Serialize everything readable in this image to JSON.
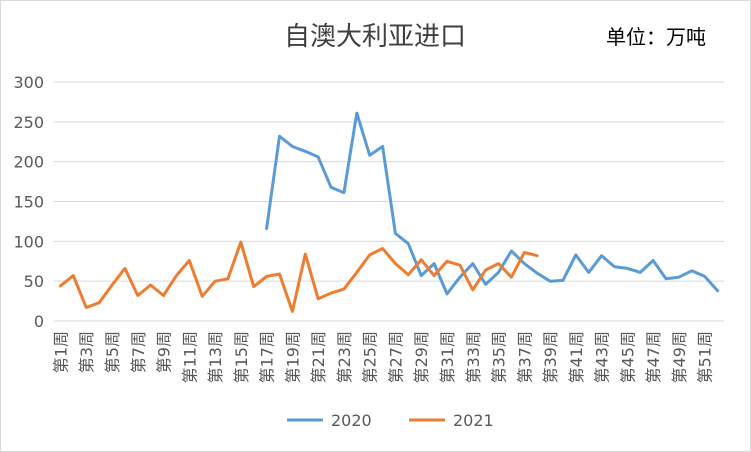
{
  "chart_data": {
    "type": "line",
    "title": "自澳大利亚进口",
    "unit_label": "单位：万吨",
    "ylim": [
      0,
      300
    ],
    "yticks": [
      0,
      50,
      100,
      150,
      200,
      250,
      300
    ],
    "grid": true,
    "legend_position": "bottom",
    "x": [
      "第1周",
      "第2周",
      "第3周",
      "第4周",
      "第5周",
      "第6周",
      "第7周",
      "第8周",
      "第9周",
      "第10周",
      "第11周",
      "第12周",
      "第13周",
      "第14周",
      "第15周",
      "第16周",
      "第17周",
      "第18周",
      "第19周",
      "第20周",
      "第21周",
      "第22周",
      "第23周",
      "第24周",
      "第25周",
      "第26周",
      "第27周",
      "第28周",
      "第29周",
      "第30周",
      "第31周",
      "第32周",
      "第33周",
      "第34周",
      "第35周",
      "第36周",
      "第37周",
      "第38周",
      "第39周",
      "第40周",
      "第41周",
      "第42周",
      "第43周",
      "第44周",
      "第45周",
      "第46周",
      "第47周",
      "第48周",
      "第49周",
      "第50周",
      "第51周",
      "第52周"
    ],
    "xtick_labels": [
      "第1周",
      "第3周",
      "第5周",
      "第7周",
      "第9周",
      "第11周",
      "第13周",
      "第15周",
      "第17周",
      "第19周",
      "第21周",
      "第23周",
      "第25周",
      "第27周",
      "第29周",
      "第31周",
      "第33周",
      "第35周",
      "第37周",
      "第39周",
      "第41周",
      "第43周",
      "第45周",
      "第47周",
      "第49周",
      "第51周"
    ],
    "series": [
      {
        "name": "2020",
        "color": "#5b9bd5",
        "values": [
          null,
          null,
          null,
          null,
          null,
          null,
          null,
          null,
          null,
          null,
          null,
          null,
          null,
          null,
          null,
          null,
          116,
          232,
          219,
          213,
          206,
          168,
          161,
          261,
          208,
          219,
          110,
          97,
          57,
          72,
          34,
          55,
          72,
          46,
          61,
          88,
          72,
          60,
          50,
          51,
          83,
          61,
          82,
          68,
          66,
          61,
          76,
          53,
          55,
          63,
          56,
          38
        ]
      },
      {
        "name": "2021",
        "color": "#ed7d31",
        "values": [
          44,
          57,
          17,
          23,
          45,
          66,
          32,
          45,
          32,
          57,
          76,
          31,
          50,
          53,
          99,
          43,
          56,
          59,
          12,
          84,
          28,
          35,
          40,
          61,
          83,
          91,
          72,
          58,
          77,
          57,
          75,
          70,
          39,
          64,
          72,
          55,
          86,
          82,
          null,
          null,
          null,
          null,
          null,
          null,
          null,
          null,
          null,
          null,
          null,
          null,
          null,
          null
        ]
      }
    ]
  }
}
